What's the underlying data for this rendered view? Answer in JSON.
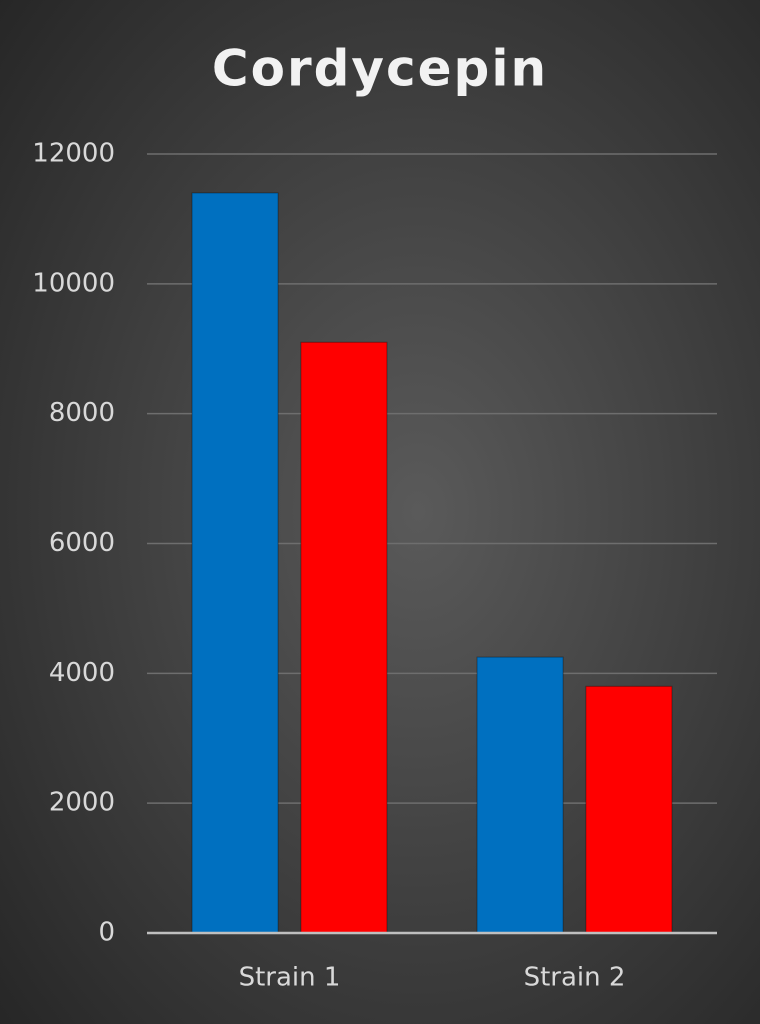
{
  "chart_data": {
    "type": "bar",
    "title": "Cordycepin",
    "categories": [
      "Strain 1",
      "Strain 2"
    ],
    "series": [
      {
        "color": "#0070c0",
        "values": [
          11400,
          4250
        ]
      },
      {
        "color": "#ff0000",
        "values": [
          9100,
          3800
        ]
      }
    ],
    "ylim": [
      0,
      12000
    ],
    "yticks": [
      0,
      2000,
      4000,
      6000,
      8000,
      10000,
      12000
    ],
    "grid": true
  }
}
